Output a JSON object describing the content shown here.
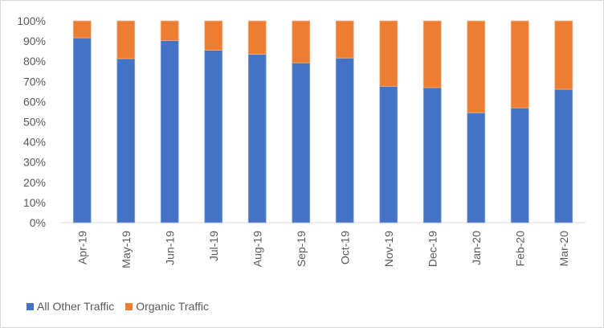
{
  "chart_data": {
    "type": "bar",
    "stacked": true,
    "percent": true,
    "categories": [
      "Apr-19",
      "May-19",
      "Jun-19",
      "Jul-19",
      "Aug-19",
      "Sep-19",
      "Oct-19",
      "Nov-19",
      "Dec-19",
      "Jan-20",
      "Feb-20",
      "Mar-20"
    ],
    "series": [
      {
        "name": "All Other Traffic",
        "color": "#4472C4",
        "values": [
          91.6,
          81.3,
          90.3,
          85.5,
          83.5,
          79.2,
          81.6,
          67.6,
          66.9,
          54.5,
          56.9,
          66.1
        ]
      },
      {
        "name": "Organic Traffic",
        "color": "#ED7D31",
        "values": [
          8.4,
          18.7,
          9.7,
          14.5,
          16.5,
          20.8,
          18.4,
          32.4,
          33.1,
          45.5,
          43.1,
          33.9
        ]
      }
    ],
    "yticks": [
      "0%",
      "10%",
      "20%",
      "30%",
      "40%",
      "50%",
      "60%",
      "70%",
      "80%",
      "90%",
      "100%"
    ],
    "ylim": [
      0,
      100
    ],
    "grid": false,
    "legend_position": "bottom-left",
    "title": "",
    "xlabel": "",
    "ylabel": ""
  }
}
